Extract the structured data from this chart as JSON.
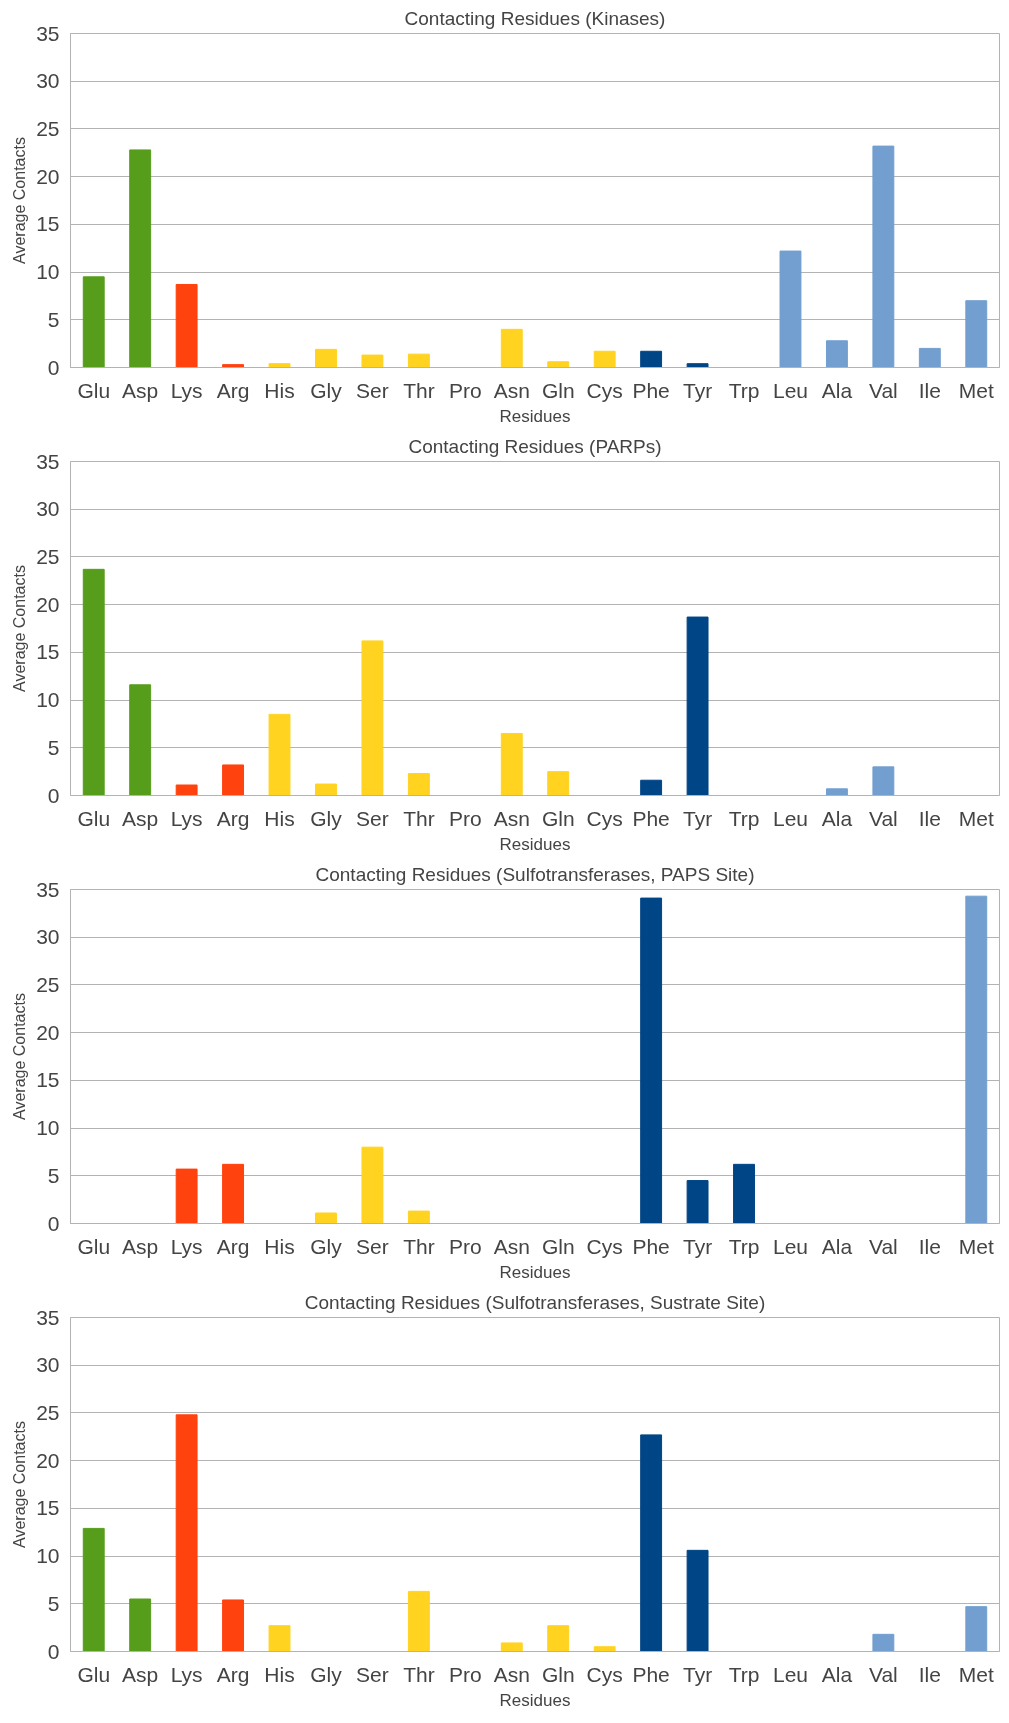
{
  "chart_data": [
    {
      "type": "bar",
      "title": "Contacting Residues (Kinases)",
      "xlabel": "Residues",
      "ylabel": "Average Contacts",
      "categories": [
        "Glu",
        "Asp",
        "Lys",
        "Arg",
        "His",
        "Gly",
        "Ser",
        "Thr",
        "Pro",
        "Asn",
        "Gln",
        "Cys",
        "Phe",
        "Tyr",
        "Trp",
        "Leu",
        "Ala",
        "Val",
        "Ile",
        "Met"
      ],
      "values": [
        9.5,
        22.8,
        8.7,
        0.3,
        0.4,
        1.9,
        1.3,
        1.4,
        0,
        4.0,
        0.6,
        1.7,
        1.7,
        0.4,
        0,
        12.2,
        2.8,
        23.2,
        2.0,
        7.0
      ],
      "colors": [
        "#579d1c",
        "#579d1c",
        "#ff420e",
        "#ff420e",
        "#ffd320",
        "#ffd320",
        "#ffd320",
        "#ffd320",
        "#ffd320",
        "#ffd320",
        "#ffd320",
        "#ffd320",
        "#004586",
        "#004586",
        "#004586",
        "#729fcf",
        "#729fcf",
        "#729fcf",
        "#729fcf",
        "#729fcf"
      ],
      "ylim": [
        0,
        35
      ],
      "yticks": [
        0,
        5,
        10,
        15,
        20,
        25,
        30,
        35
      ],
      "grid": "y"
    },
    {
      "type": "bar",
      "title": "Contacting Residues (PARPs)",
      "xlabel": "Residues",
      "ylabel": "Average Contacts",
      "categories": [
        "Glu",
        "Asp",
        "Lys",
        "Arg",
        "His",
        "Gly",
        "Ser",
        "Thr",
        "Pro",
        "Asn",
        "Gln",
        "Cys",
        "Phe",
        "Tyr",
        "Trp",
        "Leu",
        "Ala",
        "Val",
        "Ile",
        "Met"
      ],
      "values": [
        23.7,
        11.6,
        1.1,
        3.2,
        8.5,
        1.2,
        16.2,
        2.3,
        0,
        6.5,
        2.5,
        0,
        1.6,
        18.7,
        0,
        0,
        0.7,
        3.0,
        0,
        0
      ],
      "colors": [
        "#579d1c",
        "#579d1c",
        "#ff420e",
        "#ff420e",
        "#ffd320",
        "#ffd320",
        "#ffd320",
        "#ffd320",
        "#ffd320",
        "#ffd320",
        "#ffd320",
        "#ffd320",
        "#004586",
        "#004586",
        "#004586",
        "#729fcf",
        "#729fcf",
        "#729fcf",
        "#729fcf",
        "#729fcf"
      ],
      "ylim": [
        0,
        35
      ],
      "yticks": [
        0,
        5,
        10,
        15,
        20,
        25,
        30,
        35
      ],
      "grid": "y"
    },
    {
      "type": "bar",
      "title": "Contacting Residues (Sulfotransferases, PAPS Site)",
      "xlabel": "Residues",
      "ylabel": "Average Contacts",
      "categories": [
        "Glu",
        "Asp",
        "Lys",
        "Arg",
        "His",
        "Gly",
        "Ser",
        "Thr",
        "Pro",
        "Asn",
        "Gln",
        "Cys",
        "Phe",
        "Tyr",
        "Trp",
        "Leu",
        "Ala",
        "Val",
        "Ile",
        "Met"
      ],
      "values": [
        0,
        0,
        5.7,
        6.2,
        0,
        1.1,
        8.0,
        1.3,
        0,
        0,
        0,
        0,
        34.1,
        4.5,
        6.2,
        0,
        0,
        0,
        0,
        34.3
      ],
      "colors": [
        "#579d1c",
        "#579d1c",
        "#ff420e",
        "#ff420e",
        "#ffd320",
        "#ffd320",
        "#ffd320",
        "#ffd320",
        "#ffd320",
        "#ffd320",
        "#ffd320",
        "#ffd320",
        "#004586",
        "#004586",
        "#004586",
        "#729fcf",
        "#729fcf",
        "#729fcf",
        "#729fcf",
        "#729fcf"
      ],
      "ylim": [
        0,
        35
      ],
      "yticks": [
        0,
        5,
        10,
        15,
        20,
        25,
        30,
        35
      ],
      "grid": "y"
    },
    {
      "type": "bar",
      "title": "Contacting Residues (Sulfotransferases, Sustrate Site)",
      "xlabel": "Residues",
      "ylabel": "Average Contacts",
      "categories": [
        "Glu",
        "Asp",
        "Lys",
        "Arg",
        "His",
        "Gly",
        "Ser",
        "Thr",
        "Pro",
        "Asn",
        "Gln",
        "Cys",
        "Phe",
        "Tyr",
        "Trp",
        "Leu",
        "Ala",
        "Val",
        "Ile",
        "Met"
      ],
      "values": [
        12.9,
        5.5,
        24.8,
        5.4,
        2.7,
        0,
        0,
        6.3,
        0,
        0.9,
        2.7,
        0.5,
        22.7,
        10.6,
        0,
        0,
        0,
        1.8,
        0,
        4.7
      ],
      "colors": [
        "#579d1c",
        "#579d1c",
        "#ff420e",
        "#ff420e",
        "#ffd320",
        "#ffd320",
        "#ffd320",
        "#ffd320",
        "#ffd320",
        "#ffd320",
        "#ffd320",
        "#ffd320",
        "#004586",
        "#004586",
        "#004586",
        "#729fcf",
        "#729fcf",
        "#729fcf",
        "#729fcf",
        "#729fcf"
      ],
      "ylim": [
        0,
        35
      ],
      "yticks": [
        0,
        5,
        10,
        15,
        20,
        25,
        30,
        35
      ],
      "grid": "y"
    }
  ]
}
